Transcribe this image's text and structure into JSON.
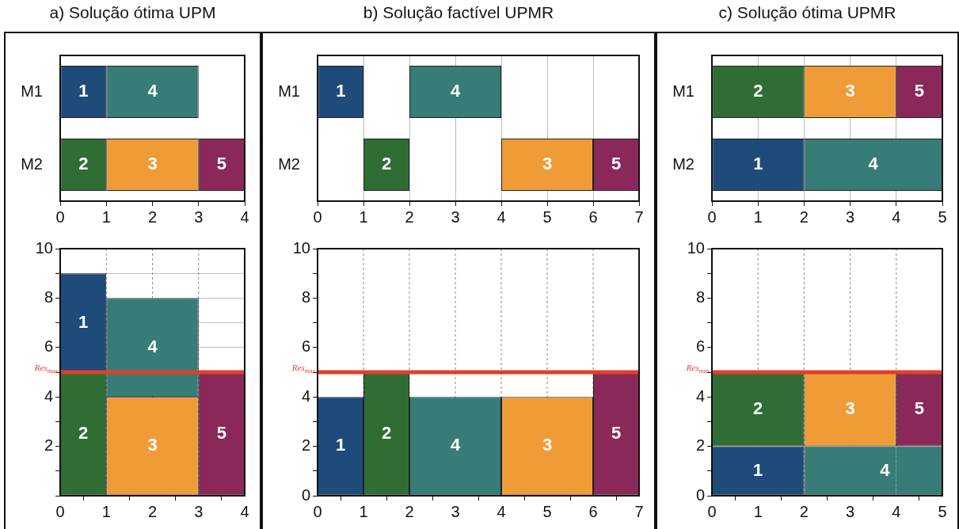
{
  "chart_data": [
    {
      "type": "bar",
      "title": "a) Solução ótima UPM",
      "orientation": "horizontal",
      "categories": [
        "M1",
        "M2"
      ],
      "xlim": [
        0,
        4
      ],
      "xticks": [
        0,
        1,
        2,
        3,
        4
      ],
      "series": [
        {
          "name": "1",
          "color": "#1f4b7a",
          "base": [
            0,
            null
          ],
          "values": [
            1,
            null
          ]
        },
        {
          "name": "4",
          "color": "#377c76",
          "base": [
            1,
            null
          ],
          "values": [
            2,
            null
          ]
        },
        {
          "name": "2",
          "color": "#2f6d35",
          "base": [
            null,
            0
          ],
          "values": [
            null,
            1
          ]
        },
        {
          "name": "3",
          "color": "#ef9c38",
          "base": [
            null,
            1
          ],
          "values": [
            null,
            2
          ]
        },
        {
          "name": "5",
          "color": "#8a285a",
          "base": [
            null,
            3
          ],
          "values": [
            null,
            1
          ]
        }
      ]
    },
    {
      "type": "histogram",
      "bins": [
        0,
        1,
        3,
        4
      ],
      "xlim": [
        0,
        4
      ],
      "xticks": [
        0,
        1,
        2,
        3,
        4
      ],
      "ylim": [
        0,
        10
      ],
      "yticks": [
        {
          "value": 0,
          "label": null
        },
        {
          "value": 1,
          "label": null
        },
        2,
        {
          "value": 3,
          "label": null
        },
        4,
        {
          "value": 5,
          "label": null
        },
        6,
        {
          "value": 7,
          "label": null
        },
        8,
        {
          "value": 9,
          "label": null
        },
        10
      ],
      "grid": true,
      "series": [
        {
          "name": "1",
          "color": "#1f4b7a",
          "base": [
            5,
            null,
            null
          ],
          "values": [
            4,
            null,
            null
          ]
        },
        {
          "name": "2",
          "color": "#2f6d35",
          "base": [
            0,
            null,
            null
          ],
          "values": [
            5,
            null,
            null
          ]
        },
        {
          "name": "4",
          "color": "#377c76",
          "base": [
            null,
            4,
            null
          ],
          "values": [
            null,
            4,
            null
          ]
        },
        {
          "name": "3",
          "color": "#ef9c38",
          "base": [
            null,
            0,
            null
          ],
          "values": [
            null,
            4,
            null
          ]
        },
        {
          "name": "5",
          "color": "#8a285a",
          "base": [
            null,
            null,
            0
          ],
          "values": [
            null,
            null,
            5
          ]
        }
      ],
      "ref_lines": [
        {
          "axis": "y",
          "value": 5,
          "label": "Res$_{max}$",
          "color": "#e0402a"
        }
      ]
    },
    {
      "type": "bar",
      "title": "b) Solução factível UPMR",
      "orientation": "horizontal",
      "categories": [
        "M1",
        "M2"
      ],
      "xlim": [
        0,
        7
      ],
      "xticks": [
        0,
        1,
        2,
        3,
        4,
        5,
        6,
        7
      ],
      "grid": "x",
      "series": [
        {
          "name": "1",
          "color": "#1f4b7a",
          "base": [
            0,
            null
          ],
          "values": [
            1,
            null
          ]
        },
        {
          "name": "4",
          "color": "#377c76",
          "base": [
            2,
            null
          ],
          "values": [
            2,
            null
          ]
        },
        {
          "name": "2",
          "color": "#2f6d35",
          "base": [
            null,
            1
          ],
          "values": [
            null,
            1
          ]
        },
        {
          "name": "3",
          "color": "#ef9c38",
          "base": [
            null,
            4
          ],
          "values": [
            null,
            2
          ]
        },
        {
          "name": "5",
          "color": "#8a285a",
          "base": [
            null,
            6
          ],
          "values": [
            null,
            1
          ]
        }
      ]
    },
    {
      "type": "histogram",
      "bins": [
        0,
        1,
        2,
        4,
        6,
        7
      ],
      "xlim": [
        0,
        7
      ],
      "xticks": [
        0,
        1,
        2,
        3,
        4,
        5,
        6,
        7
      ],
      "ylim": [
        0,
        10
      ],
      "yticks": [
        0,
        {
          "value": 1,
          "label": null
        },
        2,
        {
          "value": 3,
          "label": null
        },
        4,
        {
          "value": 5,
          "label": null
        },
        6,
        {
          "value": 7,
          "label": null
        },
        8,
        {
          "value": 9,
          "label": null
        },
        10
      ],
      "grid": "x",
      "series": [
        {
          "name": "1",
          "color": "#1f4b7a",
          "values": [
            4,
            null,
            null,
            null,
            null
          ]
        },
        {
          "name": "2",
          "color": "#2f6d35",
          "values": [
            null,
            5,
            null,
            null,
            null
          ]
        },
        {
          "name": "4",
          "color": "#377c76",
          "values": [
            null,
            null,
            4,
            null,
            null
          ]
        },
        {
          "name": "3",
          "color": "#ef9c38",
          "values": [
            null,
            null,
            null,
            4,
            null
          ]
        },
        {
          "name": "5",
          "color": "#8a285a",
          "values": [
            null,
            null,
            null,
            null,
            5
          ]
        }
      ],
      "ref_lines": [
        {
          "axis": "y",
          "value": 5,
          "label": "Res$_{max}$",
          "color": "#e0402a"
        }
      ]
    },
    {
      "type": "bar",
      "title": "c) Solução ótima UPMR",
      "orientation": "horizontal",
      "categories": [
        "M1",
        "M2"
      ],
      "xlim": [
        0,
        5
      ],
      "xticks": [
        0,
        1,
        2,
        3,
        4,
        5
      ],
      "grid": "x",
      "series": [
        {
          "name": "2",
          "color": "#2f6d35",
          "base": [
            0,
            null
          ],
          "values": [
            2,
            null
          ]
        },
        {
          "name": "3",
          "color": "#ef9c38",
          "base": [
            2,
            null
          ],
          "values": [
            2,
            null
          ]
        },
        {
          "name": "5",
          "color": "#8a285a",
          "base": [
            4,
            null
          ],
          "values": [
            1,
            null
          ]
        },
        {
          "name": "1",
          "color": "#1f4b7a",
          "base": [
            null,
            0
          ],
          "values": [
            null,
            2
          ]
        },
        {
          "name": "4",
          "color": "#377c76",
          "base": [
            null,
            2
          ],
          "values": [
            null,
            3
          ]
        }
      ]
    },
    {
      "type": "histogram",
      "bins": [
        0,
        2,
        4,
        5
      ],
      "xlim": [
        0,
        5
      ],
      "xticks": [
        0,
        1,
        2,
        3,
        4,
        5
      ],
      "ylim": [
        0,
        10
      ],
      "yticks": [
        0,
        {
          "value": 1,
          "label": null
        },
        2,
        {
          "value": 3,
          "label": null
        },
        4,
        {
          "value": 5,
          "label": null
        },
        6,
        {
          "value": 7,
          "label": null
        },
        8,
        {
          "value": 9,
          "label": null
        },
        10
      ],
      "grid": "x",
      "series": [
        {
          "name": "1",
          "color": "#1f4b7a",
          "base": [
            0,
            null,
            null
          ],
          "values": [
            2,
            null,
            null
          ]
        },
        {
          "name": "4",
          "color": "#377c76",
          "base": [
            null,
            0,
            0
          ],
          "values": [
            null,
            2,
            2
          ]
        },
        {
          "name": "2",
          "color": "#2f6d35",
          "base": [
            2,
            null,
            null
          ],
          "values": [
            3,
            null,
            null
          ]
        },
        {
          "name": "3",
          "color": "#ef9c38",
          "base": [
            null,
            2,
            null
          ],
          "values": [
            null,
            3,
            null
          ]
        },
        {
          "name": "5",
          "color": "#8a285a",
          "base": [
            null,
            null,
            2
          ],
          "values": [
            null,
            null,
            3
          ]
        }
      ],
      "ref_lines": [
        {
          "axis": "y",
          "value": 5,
          "label": "Res$_{max}$",
          "color": "#e0402a"
        }
      ]
    }
  ]
}
